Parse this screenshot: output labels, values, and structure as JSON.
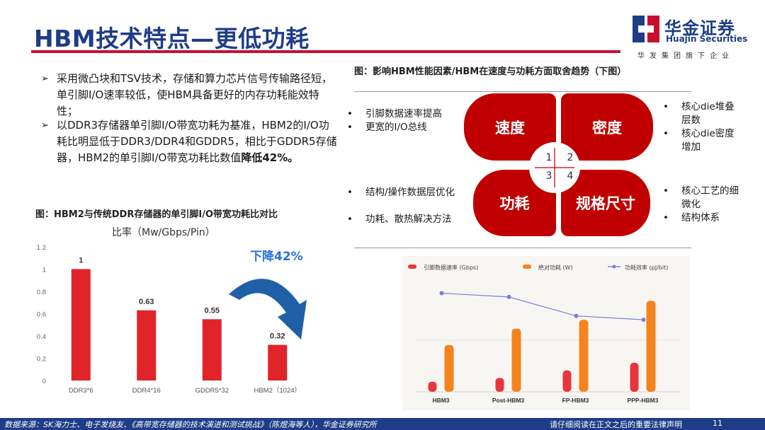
{
  "header": {
    "title": "HBM技术特点—更低功耗",
    "logo_cn": "华金证券",
    "logo_en": "Huajin Securities",
    "logo_sub": "华发集团旗下企业"
  },
  "bullets": [
    {
      "text": "采用微凸块和TSV技术，存储和算力芯片信号传输路径短，单引脚I/O速率较低，使HBM具备更好的内存功耗能效特性；",
      "bold": ""
    },
    {
      "text": "以DDR3存储器单引脚I/O带宽功耗为基准，HBM2的I/O功耗比明显低于DDR3/DDR4和GDDR5，相比于GDDR5存储器，HBM2的单引脚I/O带宽功耗比数值",
      "bold": "降低42%。"
    }
  ],
  "left_chart": {
    "caption": "图：HBM2与传统DDR存储器的单引脚I/O带宽功耗比对比",
    "callout": "下降42%"
  },
  "right_figure": {
    "caption": "图：影响HBM性能因素/HBM在速度与功耗方面取舍趋势（下图）",
    "quadrants": [
      "速度",
      "密度",
      "功耗",
      "规格尺寸"
    ],
    "numbers": [
      "1",
      "2",
      "3",
      "4"
    ],
    "speed_points": [
      "引脚数据速率提高",
      "更宽的I/O总线"
    ],
    "density_points": [
      "核心die堆叠层数",
      "核心die密度增加"
    ],
    "power_points": [
      "结构/操作数据层优化",
      "功耗、散热解决方法"
    ],
    "size_points": [
      "核心工艺的细微化",
      "结构体系"
    ],
    "bullet_char": "•"
  },
  "chart_data": [
    {
      "type": "bar",
      "title": "比率（Mw/Gbps/Pin）",
      "categories": [
        "DDR3*6",
        "DDR4*16",
        "GDDR5*32",
        "HBM2（1024）"
      ],
      "values": [
        1,
        0.63,
        0.55,
        0.32
      ],
      "value_labels": [
        "1",
        "0.63",
        "0.55",
        "0.32"
      ],
      "ylim": [
        0,
        1.2
      ],
      "yticks": [
        "0",
        "0.2",
        "0.4",
        "0.6",
        "0.8",
        "1",
        "1.2"
      ],
      "color": "#e0242a",
      "grid": false
    },
    {
      "type": "bar",
      "categories": [
        "HBM3",
        "Post-HBM3",
        "FP-HBM3",
        "PPP-HBM3"
      ],
      "legend_position": "top",
      "series": [
        {
          "name": "引脚数据速率 (Gbps)",
          "kind": "bar",
          "color": "#e8353e",
          "values": [
            0.08,
            0.11,
            0.17,
            0.23
          ]
        },
        {
          "name": "绝对功耗 (W)",
          "kind": "bar",
          "color": "#f5841f",
          "values": [
            0.37,
            0.5,
            0.57,
            0.72
          ]
        },
        {
          "name": "功耗效率 (pJ/bit)",
          "kind": "line",
          "color": "#7a7fd9",
          "values": [
            0.78,
            0.75,
            0.6,
            0.57
          ]
        }
      ]
    }
  ],
  "footer": {
    "source": "数据来源：SK海力士、电子发烧友、《高带宽存储器的技术演进和测试挑战》（陈煜海等人），华金证券研究所",
    "disclaimer": "请仔细阅读在正文之后的重要法律声明",
    "page": "11"
  },
  "colors": {
    "brand_blue": "#1f3c86",
    "brand_red": "#c8102e",
    "quad_red": "#c00000",
    "callout_blue": "#2a73d4"
  }
}
